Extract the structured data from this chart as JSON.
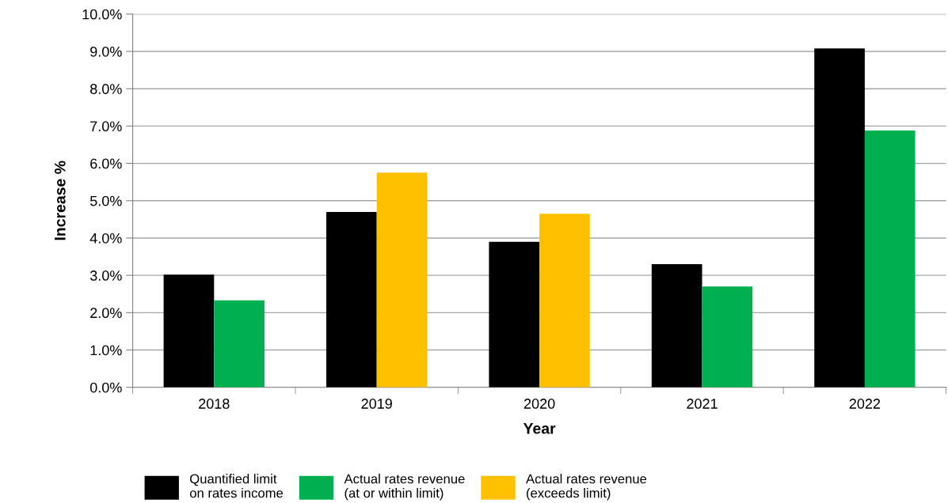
{
  "chart_data": {
    "type": "bar",
    "xlabel": "Year",
    "ylabel": "Increase %",
    "categories": [
      "2018",
      "2019",
      "2020",
      "2021",
      "2022"
    ],
    "series": [
      {
        "name": "Quantified limit\non rates income",
        "color": "#000000",
        "values": [
          3.02,
          4.7,
          3.9,
          3.3,
          9.08
        ]
      },
      {
        "name": "Actual rates revenue\n(at or within limit)",
        "color": "#00b050",
        "values": [
          2.33,
          null,
          null,
          2.7,
          6.88
        ]
      },
      {
        "name": "Actual rates revenue\n(exceeds limit)",
        "color": "#ffc000",
        "values": [
          null,
          5.75,
          4.65,
          null,
          null
        ]
      }
    ],
    "ylim": [
      0,
      10
    ],
    "yticks": [
      {
        "value": 0,
        "label": "0.0%"
      },
      {
        "value": 1,
        "label": "1.0%"
      },
      {
        "value": 2,
        "label": "2.0%"
      },
      {
        "value": 3,
        "label": "3.0%"
      },
      {
        "value": 4,
        "label": "4.0%"
      },
      {
        "value": 5,
        "label": "5.0%"
      },
      {
        "value": 6,
        "label": "6.0%"
      },
      {
        "value": 7,
        "label": "7.0%"
      },
      {
        "value": 8,
        "label": "8.0%"
      },
      {
        "value": 9,
        "label": "9.0%"
      },
      {
        "value": 10,
        "label": "10.0%"
      }
    ],
    "grid": "y",
    "legend": "bottom"
  }
}
